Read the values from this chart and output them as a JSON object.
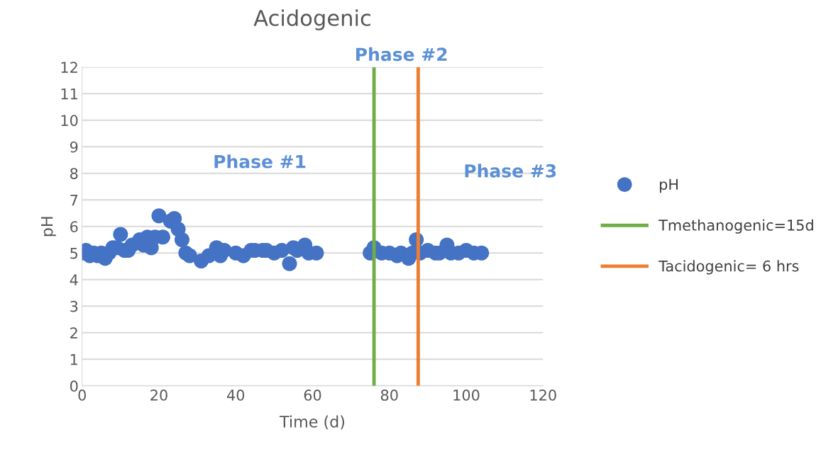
{
  "chart_data": {
    "type": "scatter",
    "title": "Acidogenic",
    "xlabel": "Time (d)",
    "ylabel": "pH",
    "xlim": [
      0,
      120
    ],
    "xticks": [
      0,
      20,
      40,
      60,
      80,
      100,
      120
    ],
    "ylim": [
      0,
      12
    ],
    "yticks": [
      0,
      1,
      2,
      3,
      4,
      5,
      6,
      7,
      8,
      9,
      10,
      11,
      12
    ],
    "grid": "y",
    "legend": "right",
    "marker": "circle",
    "series": [
      {
        "name": "pH",
        "color": "#4472c4",
        "x": [
          0,
          1,
          2,
          3,
          4,
          5,
          6,
          7,
          8,
          9,
          10,
          11,
          12,
          13,
          15,
          16,
          17,
          18,
          19,
          20,
          21,
          23,
          24,
          25,
          26,
          27,
          28,
          31,
          33,
          35,
          36,
          37,
          40,
          42,
          44,
          45,
          47,
          48,
          50,
          52,
          54,
          55,
          56,
          58,
          59,
          61,
          75,
          76,
          78,
          80,
          82,
          83,
          85,
          86,
          87,
          88,
          90,
          92,
          93,
          95,
          96,
          98,
          100,
          102,
          104
        ],
        "values": [
          5.0,
          5.1,
          4.9,
          5.0,
          4.9,
          5.0,
          4.8,
          5.0,
          5.2,
          5.2,
          5.7,
          5.1,
          5.1,
          5.3,
          5.5,
          5.3,
          5.6,
          5.2,
          5.6,
          6.4,
          5.6,
          6.2,
          6.3,
          5.9,
          5.5,
          5.0,
          4.9,
          4.7,
          4.9,
          5.2,
          4.9,
          5.1,
          5.0,
          4.9,
          5.1,
          5.1,
          5.1,
          5.1,
          5.0,
          5.1,
          4.6,
          5.2,
          5.1,
          5.3,
          5.0,
          5.0,
          5.0,
          5.2,
          5.0,
          5.0,
          4.9,
          5.0,
          4.8,
          5.0,
          5.5,
          5.0,
          5.1,
          5.0,
          5.0,
          5.3,
          5.0,
          5.0,
          5.1,
          5.0,
          5.0
        ]
      },
      {
        "name": "Tmethanogenic=15d",
        "type": "line",
        "marker": "none",
        "color": "#70ad47",
        "x": [
          76,
          76
        ],
        "values": [
          0,
          12
        ]
      },
      {
        "name": "Tacidogenic= 6 hrs",
        "type": "line",
        "marker": "none",
        "color": "#ed7d31",
        "x": [
          87.5,
          87.5
        ],
        "values": [
          0,
          12
        ]
      }
    ],
    "annotations": [
      "Phase #1",
      "Phase #2",
      "Phase #3"
    ]
  }
}
